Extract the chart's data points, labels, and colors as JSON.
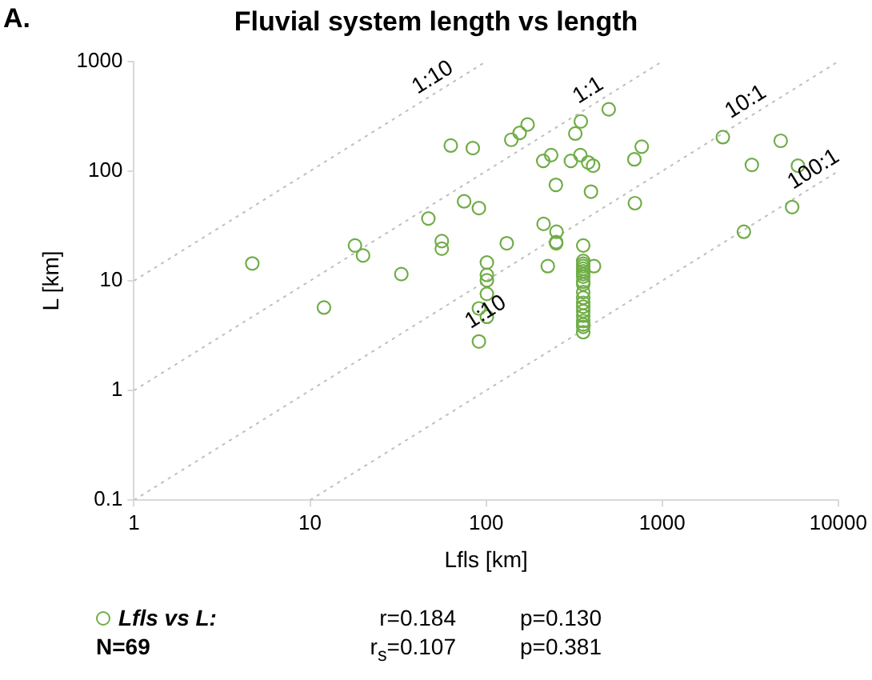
{
  "chart_data": {
    "type": "scatter",
    "title": "Fluvial system length vs length",
    "xlabel": "Lfls [km]",
    "ylabel": "L [km]",
    "log": "xy",
    "xlim": [
      1,
      10000
    ],
    "xticks": [
      1,
      10,
      100,
      1000,
      10000
    ],
    "ylim": [
      0.1,
      1000
    ],
    "yticks": [
      0.1,
      1,
      10,
      100,
      1000
    ],
    "grid": false,
    "legend": "bottom",
    "marker": "circle",
    "series": [
      {
        "name": "Lfls vs L:",
        "color": "#70ad47",
        "x": [
          4.7,
          12,
          18,
          20,
          33,
          47,
          56,
          56,
          63,
          84,
          75,
          91,
          101,
          101,
          101,
          101,
          91,
          101,
          91,
          131,
          139,
          155,
          172,
          211,
          234,
          249,
          212,
          251,
          250,
          250,
          224,
          321,
          345,
          303,
          343,
          380,
          405,
          394,
          497,
          765,
          695,
          700,
          410,
          356,
          356,
          356,
          356,
          356,
          356,
          356,
          356,
          356,
          356,
          356,
          356,
          356,
          356,
          356,
          356,
          356,
          356,
          356,
          356,
          2210,
          4710,
          3230,
          5900,
          5470,
          2910
        ],
        "values": [
          14.4,
          5.7,
          21,
          17,
          11.5,
          37,
          23,
          19.6,
          171,
          162,
          53,
          46,
          14.7,
          11.3,
          10.1,
          7.6,
          5.6,
          4.7,
          2.8,
          22,
          193,
          223,
          266,
          124,
          140,
          75,
          33,
          28,
          22.5,
          22,
          13.6,
          220,
          284,
          124,
          140,
          120,
          112,
          65,
          366,
          167,
          128,
          51,
          13.6,
          21,
          15.2,
          14.3,
          13.6,
          12.9,
          12.2,
          11.5,
          10.9,
          9.8,
          9.3,
          7.9,
          7,
          6.3,
          5.8,
          5.3,
          4.8,
          4.3,
          4,
          3.8,
          3.4,
          204,
          189,
          114,
          112,
          47,
          28
        ]
      },
      {
        "type": "line",
        "color": "#bfbfbf",
        "line_style": "dotted",
        "marker": "none",
        "x": [
          1,
          100
        ],
        "values": [
          10,
          1000
        ]
      },
      {
        "type": "line",
        "color": "#bfbfbf",
        "line_style": "dotted",
        "marker": "none",
        "x": [
          1,
          1000
        ],
        "values": [
          1,
          1000
        ]
      },
      {
        "type": "line",
        "color": "#bfbfbf",
        "line_style": "dotted",
        "marker": "none",
        "x": [
          1,
          10000
        ],
        "values": [
          0.1,
          1000
        ]
      },
      {
        "type": "line",
        "color": "#bfbfbf",
        "line_style": "dotted",
        "marker": "none",
        "x": [
          10,
          10000
        ],
        "values": [
          0.1,
          100
        ]
      }
    ],
    "annotations": [
      "A.",
      "N=69",
      "r=0.184",
      "p=0.130",
      "r$_{s}$=0.107",
      "p=0.381",
      {
        "text": "1:10",
        "x": 55,
        "y": 550
      },
      {
        "text": "1:1",
        "x": 420,
        "y": 420
      },
      {
        "text": "10:1",
        "x": 3300,
        "y": 330
      },
      {
        "text": "100:1",
        "x": 8000,
        "y": 80
      },
      {
        "text": "1:10",
        "x": 110,
        "y": 4
      }
    ]
  }
}
